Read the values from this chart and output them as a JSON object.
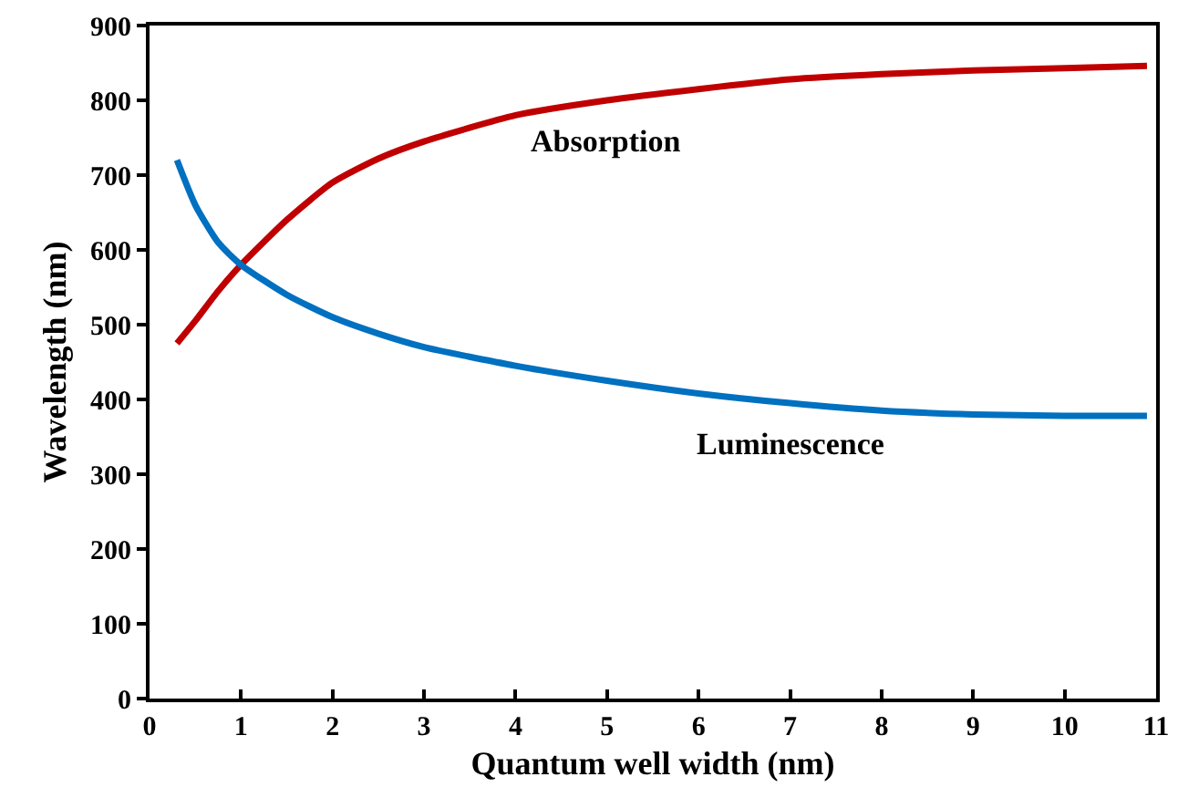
{
  "chart_data": {
    "type": "line",
    "xlabel": "Quantum well width (nm)",
    "ylabel": "Wavelength (nm)",
    "xlim": [
      0,
      11
    ],
    "xticks": [
      0,
      1,
      2,
      3,
      4,
      5,
      6,
      7,
      8,
      9,
      10,
      11
    ],
    "ylim": [
      0,
      900
    ],
    "yticks": [
      0,
      100,
      200,
      300,
      400,
      500,
      600,
      700,
      800,
      900
    ],
    "grid": false,
    "legend": false,
    "marker": "none",
    "line_style": "solid",
    "series": [
      {
        "name": "Absorption",
        "color": "#c00000",
        "x": [
          0.3,
          0.5,
          0.75,
          1,
          1.5,
          2,
          2.5,
          3,
          4,
          5,
          6,
          7,
          8,
          9,
          10,
          10.9
        ],
        "values": [
          475,
          505,
          545,
          580,
          640,
          690,
          722,
          745,
          780,
          800,
          815,
          828,
          835,
          840,
          843,
          846
        ]
      },
      {
        "name": "Luminescence",
        "color": "#0070c0",
        "x": [
          0.3,
          0.5,
          0.75,
          1,
          1.5,
          2,
          2.5,
          3,
          4,
          5,
          6,
          7,
          8,
          9,
          10,
          10.9
        ],
        "values": [
          720,
          660,
          610,
          580,
          540,
          510,
          488,
          470,
          445,
          425,
          408,
          395,
          385,
          380,
          378,
          378
        ]
      }
    ]
  }
}
